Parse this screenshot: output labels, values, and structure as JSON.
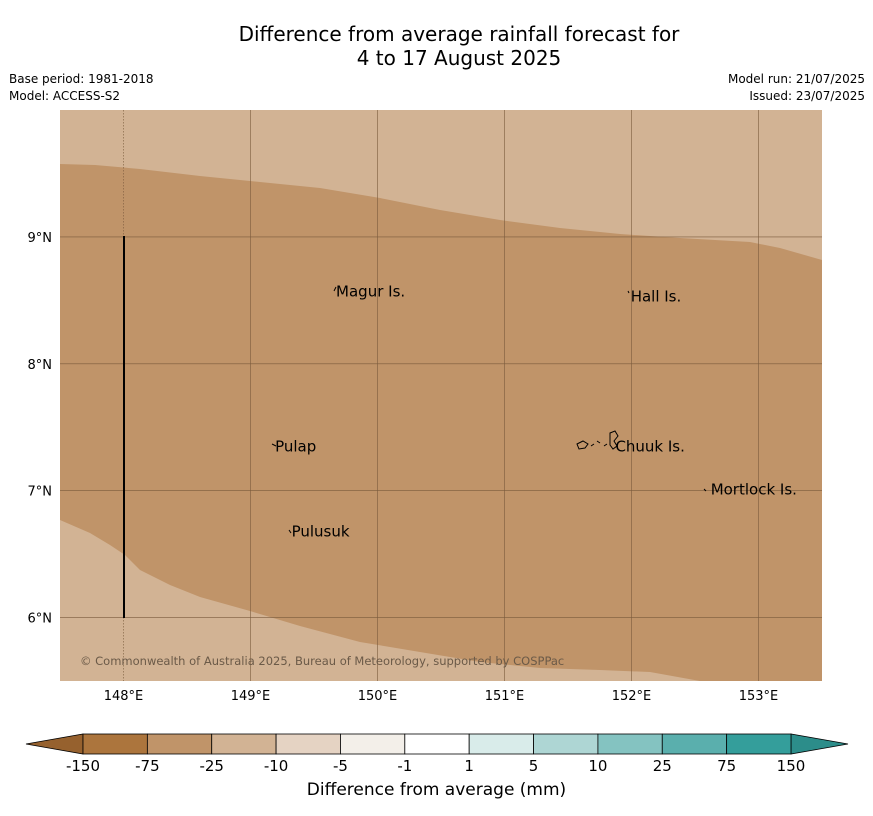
{
  "title": {
    "line1": "Difference from average rainfall forecast for",
    "line2": "4 to 17 August 2025"
  },
  "meta": {
    "base_period": "Base period: 1981-2018",
    "model": "Model: ACCESS-S2",
    "model_run": "Model run: 21/07/2025",
    "issued": "Issued: 23/07/2025"
  },
  "map": {
    "lon_range": [
      147.5,
      153.5
    ],
    "lat_range": [
      5.5,
      10.0
    ],
    "lon_ticks": [
      "148°E",
      "149°E",
      "150°E",
      "151°E",
      "152°E",
      "153°E"
    ],
    "lat_ticks": [
      "9°N",
      "8°N",
      "7°N",
      "6°N"
    ],
    "background_color": "#d2b394",
    "forecast_band_color": "#c09469",
    "grid": true,
    "places": [
      {
        "name": "Magur Is.",
        "lon": 149.65,
        "lat": 8.57
      },
      {
        "name": "Hall Is.",
        "lon": 151.97,
        "lat": 8.53
      },
      {
        "name": "Pulap",
        "lon": 149.17,
        "lat": 7.35
      },
      {
        "name": "Chuuk Is.",
        "lon": 151.85,
        "lat": 7.35
      },
      {
        "name": "Mortlock Is.",
        "lon": 152.6,
        "lat": 7.01
      },
      {
        "name": "Pulusuk",
        "lon": 149.3,
        "lat": 6.68
      }
    ],
    "copyright": "© Commonwealth of Australia 2025, Bureau of Meteorology, supported by COSPPac"
  },
  "colorbar": {
    "label": "Difference from average (mm)",
    "ticks": [
      "-150",
      "-75",
      "-25",
      "-10",
      "-5",
      "-1",
      "1",
      "5",
      "10",
      "25",
      "75",
      "150"
    ],
    "colors": [
      "#ac753d",
      "#c09469",
      "#d2b394",
      "#e5d3c3",
      "#f3efe9",
      "#ffffff",
      "#d9ecea",
      "#aed6d4",
      "#84c3c1",
      "#5aafad",
      "#349e9b"
    ],
    "under_color": "#96612e",
    "over_color": "#2c8d8a"
  }
}
